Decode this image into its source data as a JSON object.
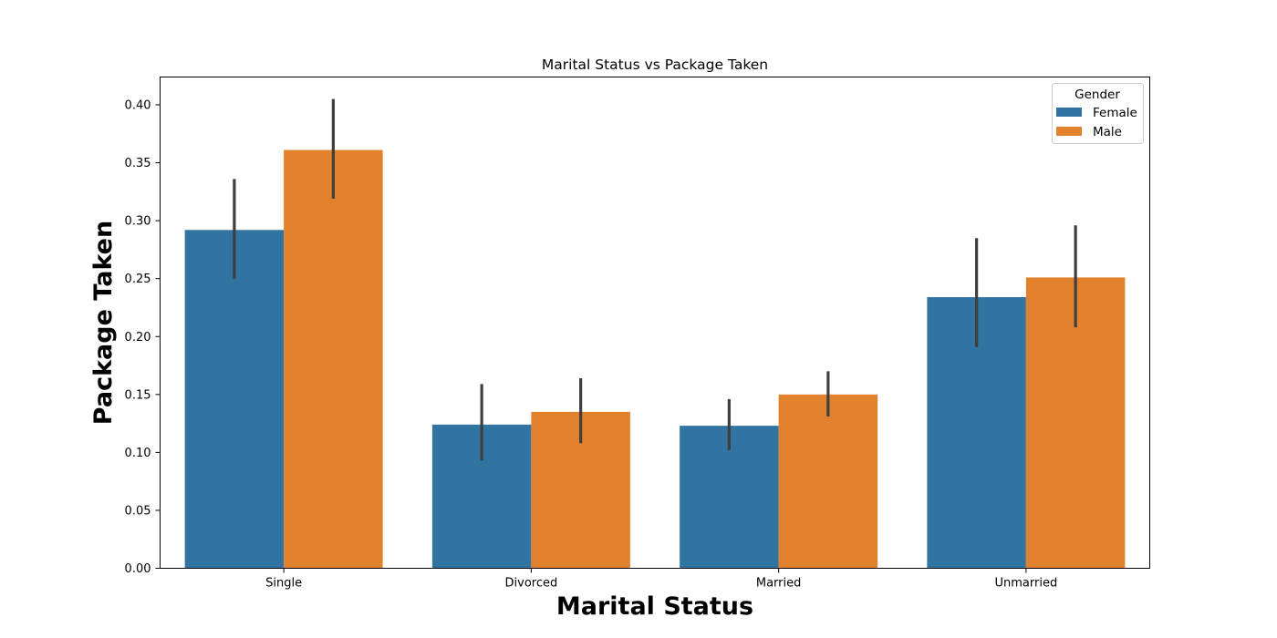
{
  "chart_data": {
    "type": "bar",
    "title": "Marital Status vs Package Taken",
    "xlabel": "Marital Status",
    "ylabel": "Package Taken",
    "categories": [
      "Single",
      "Divorced",
      "Married",
      "Unmarried"
    ],
    "series": [
      {
        "name": "Female",
        "color": "#3274a1",
        "values": [
          0.292,
          0.124,
          0.123,
          0.234
        ],
        "error_low": [
          0.25,
          0.093,
          0.102,
          0.191
        ],
        "error_high": [
          0.336,
          0.159,
          0.146,
          0.285
        ]
      },
      {
        "name": "Male",
        "color": "#e1812c",
        "values": [
          0.361,
          0.135,
          0.15,
          0.251
        ],
        "error_low": [
          0.319,
          0.108,
          0.131,
          0.208
        ],
        "error_high": [
          0.405,
          0.164,
          0.17,
          0.296
        ]
      }
    ],
    "ylim": [
      0,
      0.424
    ],
    "yticks": [
      "0.00",
      "0.05",
      "0.10",
      "0.15",
      "0.20",
      "0.25",
      "0.30",
      "0.35",
      "0.40"
    ],
    "legend": {
      "title": "Gender",
      "position": "top-right"
    },
    "grid": false,
    "error_bar_color": "#3f3f3f"
  }
}
